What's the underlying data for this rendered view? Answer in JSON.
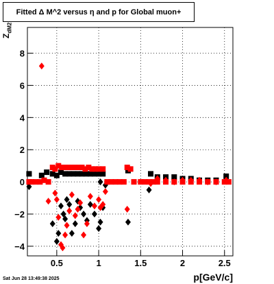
{
  "title": "Fitted Δ M^2 versus η and p for Global muon+",
  "footer": "Sat Jun 28 13:49:38 2025",
  "chart_data": {
    "type": "scatter",
    "title": "Fitted Δ M^2 versus η and p for Global muon+",
    "xlabel": "p[GeV/c]",
    "ylabel": "Z",
    "ylabel_sub": "dM2",
    "xlim": [
      0.15,
      2.6
    ],
    "ylim": [
      -4.6,
      9.6
    ],
    "xticks": [
      0.5,
      1,
      1.5,
      2,
      2.5
    ],
    "xtick_labels": [
      "0.5",
      "1",
      "1.5",
      "2",
      "2.5"
    ],
    "yticks": [
      -4,
      -2,
      0,
      2,
      4,
      6,
      8
    ],
    "ytick_labels": [
      "−4",
      "−2",
      "0",
      "2",
      "4",
      "6",
      "8"
    ],
    "grid": true,
    "series": [
      {
        "marker": "square",
        "color": "#000000",
        "points": [
          [
            0.17,
            0.5
          ],
          [
            0.32,
            0.4
          ],
          [
            0.38,
            0.6
          ],
          [
            0.45,
            0.5
          ],
          [
            0.5,
            0.4
          ],
          [
            0.55,
            0.6
          ],
          [
            0.6,
            0.5
          ],
          [
            0.65,
            0.5
          ],
          [
            0.7,
            0.5
          ],
          [
            0.75,
            0.5
          ],
          [
            0.8,
            0.5
          ],
          [
            0.85,
            0.5
          ],
          [
            0.9,
            0.5
          ],
          [
            0.95,
            0.5
          ],
          [
            1.0,
            0.5
          ],
          [
            1.05,
            0.5
          ],
          [
            1.35,
            0.7
          ],
          [
            1.62,
            0.5
          ],
          [
            1.7,
            0.3
          ],
          [
            1.8,
            0.3
          ],
          [
            1.9,
            0.3
          ],
          [
            2.0,
            0.2
          ],
          [
            2.1,
            0.2
          ],
          [
            2.2,
            0.1
          ],
          [
            2.3,
            0.1
          ],
          [
            2.4,
            0.1
          ],
          [
            2.52,
            0.35
          ]
        ]
      },
      {
        "marker": "diamond",
        "color": "#000000",
        "points": [
          [
            0.17,
            -0.3
          ],
          [
            0.45,
            -2.6
          ],
          [
            0.5,
            -3.7
          ],
          [
            0.52,
            -3.2
          ],
          [
            0.55,
            -1.5
          ],
          [
            0.58,
            -2.0
          ],
          [
            0.6,
            -2.3
          ],
          [
            0.62,
            -1.1
          ],
          [
            0.65,
            -1.4
          ],
          [
            0.68,
            -3.2
          ],
          [
            0.72,
            -2.6
          ],
          [
            0.75,
            -1.2
          ],
          [
            0.78,
            -1.6
          ],
          [
            0.82,
            -2.0
          ],
          [
            0.86,
            -2.4
          ],
          [
            0.9,
            -1.4
          ],
          [
            0.95,
            -2.0
          ],
          [
            1.0,
            -2.9
          ],
          [
            1.02,
            -2.5
          ],
          [
            1.05,
            -1.6
          ],
          [
            1.08,
            -0.2
          ],
          [
            1.35,
            -2.5
          ],
          [
            1.6,
            -0.5
          ],
          [
            1.02,
            0.0
          ]
        ]
      },
      {
        "marker": "square",
        "color": "#ff0000",
        "points": [
          [
            0.17,
            0.0
          ],
          [
            0.2,
            0.0
          ],
          [
            0.25,
            0.0
          ],
          [
            0.3,
            0.0
          ],
          [
            0.35,
            0.1
          ],
          [
            0.4,
            0.0
          ],
          [
            0.45,
            0.9
          ],
          [
            0.48,
            0.8
          ],
          [
            0.52,
            1.0
          ],
          [
            0.56,
            0.9
          ],
          [
            0.6,
            0.9
          ],
          [
            0.64,
            0.9
          ],
          [
            0.68,
            0.9
          ],
          [
            0.72,
            0.9
          ],
          [
            0.76,
            0.9
          ],
          [
            0.8,
            0.9
          ],
          [
            0.84,
            0.8
          ],
          [
            0.88,
            0.9
          ],
          [
            0.92,
            0.8
          ],
          [
            0.96,
            0.8
          ],
          [
            1.0,
            0.8
          ],
          [
            1.05,
            0.8
          ],
          [
            1.1,
            0.0
          ],
          [
            1.15,
            0.0
          ],
          [
            1.2,
            0.0
          ],
          [
            1.25,
            0.0
          ],
          [
            1.3,
            0.0
          ],
          [
            1.34,
            0.9
          ],
          [
            1.38,
            0.8
          ],
          [
            1.42,
            0.0
          ],
          [
            1.5,
            0.0
          ],
          [
            1.55,
            0.0
          ],
          [
            1.6,
            0.0
          ],
          [
            1.65,
            0.0
          ],
          [
            1.7,
            0.0
          ],
          [
            1.8,
            0.0
          ],
          [
            1.9,
            0.0
          ],
          [
            2.0,
            0.0
          ],
          [
            2.1,
            0.0
          ],
          [
            2.2,
            0.0
          ],
          [
            2.3,
            0.0
          ],
          [
            2.4,
            0.0
          ],
          [
            2.5,
            0.0
          ],
          [
            2.55,
            0.0
          ]
        ]
      },
      {
        "marker": "diamond",
        "color": "#ff0000",
        "points": [
          [
            0.32,
            7.2
          ],
          [
            0.4,
            -1.2
          ],
          [
            0.48,
            -0.7
          ],
          [
            0.5,
            -1.1
          ],
          [
            0.52,
            -2.2
          ],
          [
            0.55,
            -3.9
          ],
          [
            0.57,
            -4.1
          ],
          [
            0.6,
            -3.3
          ],
          [
            0.62,
            -2.7
          ],
          [
            0.65,
            -1.8
          ],
          [
            0.68,
            -0.8
          ],
          [
            0.72,
            -2.1
          ],
          [
            0.75,
            -1.7
          ],
          [
            0.78,
            -1.3
          ],
          [
            0.82,
            -3.3
          ],
          [
            0.86,
            -2.6
          ],
          [
            0.9,
            -0.9
          ],
          [
            0.95,
            -1.5
          ],
          [
            1.0,
            -1.1
          ],
          [
            1.02,
            -1.6
          ],
          [
            1.05,
            -1.4
          ],
          [
            1.08,
            -0.6
          ],
          [
            1.34,
            -1.7
          ],
          [
            1.62,
            -0.1
          ],
          [
            1.7,
            0.2
          ],
          [
            1.8,
            0.1
          ],
          [
            1.9,
            0.0
          ],
          [
            2.0,
            0.1
          ],
          [
            2.1,
            0.1
          ],
          [
            2.2,
            0.1
          ],
          [
            2.3,
            0.0
          ],
          [
            2.4,
            0.0
          ],
          [
            2.52,
            0.1
          ]
        ]
      }
    ]
  }
}
